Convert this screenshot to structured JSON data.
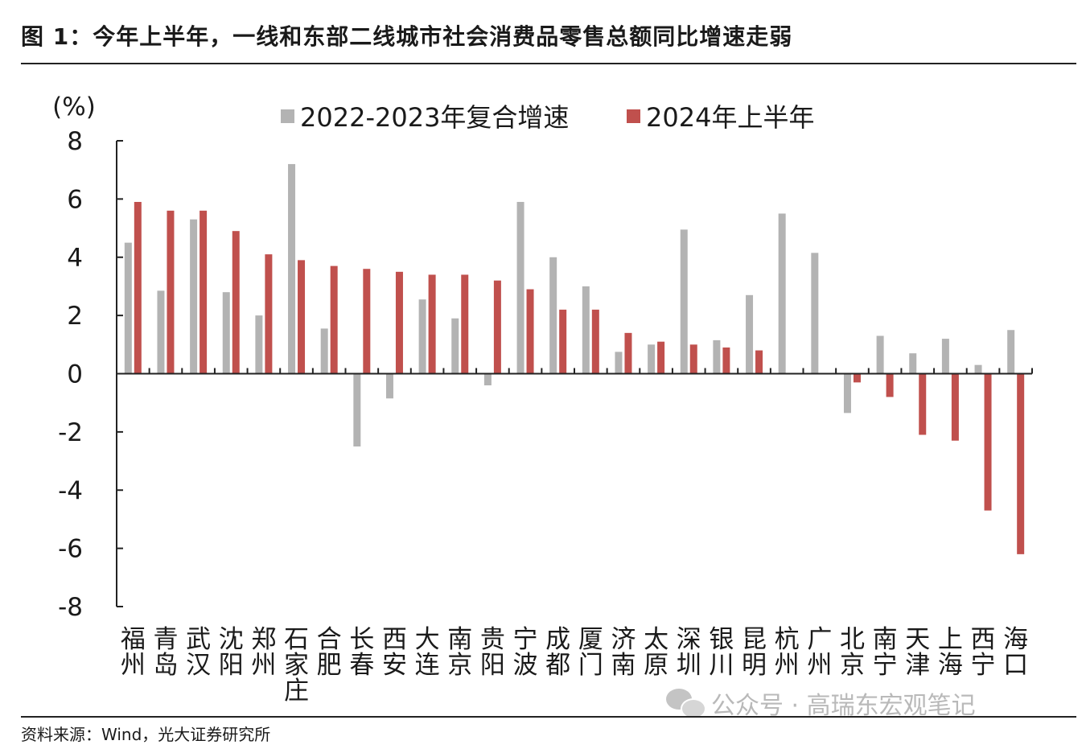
{
  "header": {
    "title": "图 1：今年上半年，一线和东部二线城市社会消费品零售总额同比增速走弱"
  },
  "footer": {
    "source": "资料来源：Wind，光大证券研究所",
    "watermark": "公众号 · 高瑞东宏观笔记",
    "watermark_icon": "wechat-icon"
  },
  "colors": {
    "series_2022_2023": "#b3b3b3",
    "series_2024h1": "#c0504d",
    "axis": "#222222"
  },
  "chart_data": {
    "type": "bar",
    "title": "",
    "ylabel": "(%)",
    "xlabel": "",
    "ylim": [
      -8,
      8
    ],
    "yticks": [
      8,
      6,
      4,
      2,
      0,
      -2,
      -4,
      -6,
      -8
    ],
    "legend_position": "top-center",
    "grid": false,
    "categories": [
      "福州",
      "青岛",
      "武汉",
      "沈阳",
      "郑州",
      "石家庄",
      "合肥",
      "长春",
      "西安",
      "大连",
      "南京",
      "贵阳",
      "宁波",
      "成都",
      "厦门",
      "济南",
      "太原",
      "深圳",
      "银川",
      "昆明",
      "杭州",
      "广州",
      "北京",
      "南宁",
      "天津",
      "上海",
      "西宁",
      "海口"
    ],
    "series": [
      {
        "name": "2022-2023年复合增速",
        "color": "#b3b3b3",
        "values": [
          4.5,
          2.85,
          5.3,
          2.8,
          2.0,
          7.2,
          1.55,
          -2.5,
          -0.85,
          2.55,
          1.9,
          -0.4,
          5.9,
          4.0,
          3.0,
          0.75,
          1.0,
          4.95,
          1.15,
          2.7,
          5.5,
          4.15,
          -1.35,
          1.3,
          0.7,
          1.2,
          0.3,
          1.5
        ]
      },
      {
        "name": "2024年上半年",
        "color": "#c0504d",
        "values": [
          5.9,
          5.6,
          5.6,
          4.9,
          4.1,
          3.9,
          3.7,
          3.6,
          3.5,
          3.4,
          3.4,
          3.2,
          2.9,
          2.2,
          2.2,
          1.4,
          1.1,
          1.0,
          0.9,
          0.8,
          0.0,
          0.0,
          -0.3,
          -0.8,
          -2.1,
          -2.3,
          -4.7,
          -6.2
        ]
      }
    ]
  }
}
